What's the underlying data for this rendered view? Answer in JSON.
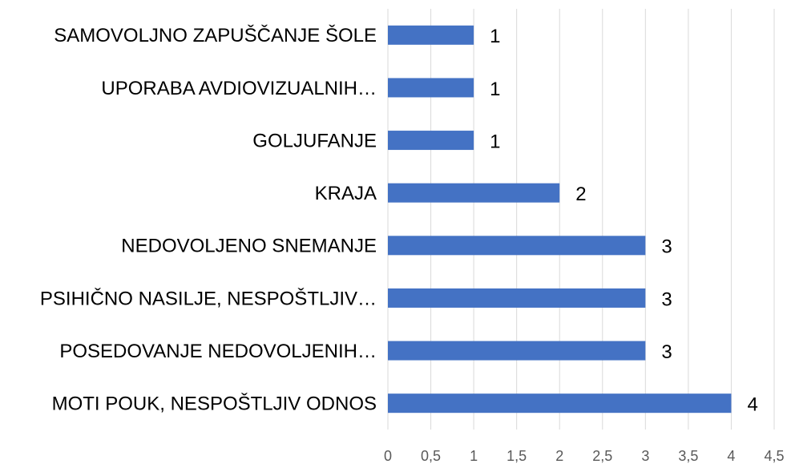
{
  "chart_data": {
    "type": "bar",
    "orientation": "horizontal",
    "categories": [
      "SAMOVOLJNO ZAPUŠČANJE ŠOLE",
      "UPORABA AVDIOVIZUALNIH…",
      "GOLJUFANJE",
      "KRAJA",
      "NEDOVOLJENO SNEMANJE",
      "PSIHIČNO NASILJE, NESPOŠTLJIV…",
      "POSEDOVANJE NEDOVOLJENIH…",
      "MOTI POUK, NESPOŠTLJIV ODNOS"
    ],
    "values": [
      1,
      1,
      1,
      2,
      3,
      3,
      3,
      4
    ],
    "color": "#4472c4",
    "xlim": [
      0,
      4.5
    ],
    "xticks": [
      0,
      {
        "value": 0.5,
        "label": "0,5"
      },
      1,
      {
        "value": 1.5,
        "label": "1,5"
      },
      2,
      {
        "value": 2.5,
        "label": "2,5"
      },
      3,
      {
        "value": 3.5,
        "label": "3,5"
      },
      4,
      {
        "value": 4.5,
        "label": "4,5"
      }
    ],
    "grid": true
  }
}
